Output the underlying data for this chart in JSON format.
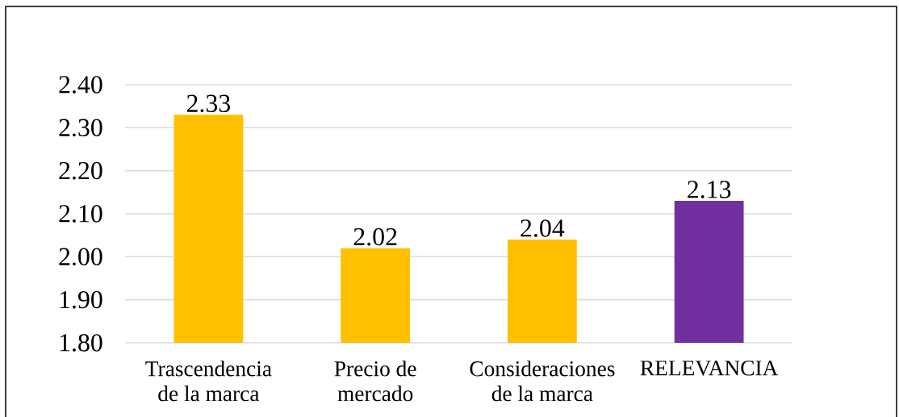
{
  "chart_data": {
    "type": "bar",
    "categories": [
      "Trascendencia de la marca",
      "Precio de mercado",
      "Consideraciones de la marca",
      "RELEVANCIA"
    ],
    "values": [
      2.33,
      2.02,
      2.04,
      2.13
    ],
    "colors": [
      "#ffc000",
      "#ffc000",
      "#ffc000",
      "#7030a0"
    ],
    "ylim": [
      1.8,
      2.4
    ],
    "yticks": [
      {
        "value": 1.8,
        "label": "1.80"
      },
      {
        "value": 1.9,
        "label": "1.90"
      },
      {
        "value": 2.0,
        "label": "2.00"
      },
      {
        "value": 2.1,
        "label": "2.10"
      },
      {
        "value": 2.2,
        "label": "2.20"
      },
      {
        "value": 2.3,
        "label": "2.30"
      },
      {
        "value": 2.4,
        "label": "2.40"
      }
    ],
    "grid": "y",
    "data_labels": true
  }
}
